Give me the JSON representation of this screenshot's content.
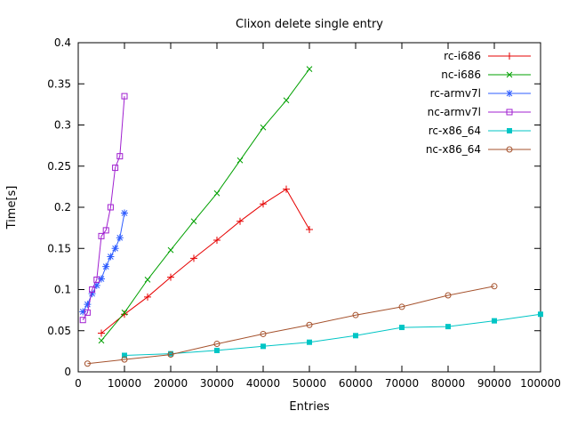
{
  "chart_data": {
    "type": "line",
    "title": "Clixon delete single entry",
    "xlabel": "Entries",
    "ylabel": "Time[s]",
    "xlim": [
      0,
      100000
    ],
    "ylim": [
      0,
      0.4
    ],
    "grid": false,
    "legend_position": "top-right-inside",
    "xticks": {
      "values": [
        0,
        10000,
        20000,
        30000,
        40000,
        50000,
        60000,
        70000,
        80000,
        90000,
        100000
      ],
      "labels": [
        "0",
        "10000",
        "20000",
        "30000",
        "40000",
        "50000",
        "60000",
        "70000",
        "80000",
        "90000",
        "100000"
      ]
    },
    "yticks": {
      "values": [
        0,
        0.05,
        0.1,
        0.15,
        0.2,
        0.25,
        0.3,
        0.35,
        0.4
      ],
      "labels": [
        "0",
        "0.05",
        "0.1",
        "0.15",
        "0.2",
        "0.25",
        "0.3",
        "0.35",
        "0.4"
      ]
    },
    "series": [
      {
        "name": "rc-i686",
        "color": "#e60000",
        "marker": "plus",
        "points": [
          [
            5000,
            0.047
          ],
          [
            10000,
            0.07
          ],
          [
            15000,
            0.091
          ],
          [
            20000,
            0.115
          ],
          [
            25000,
            0.138
          ],
          [
            30000,
            0.16
          ],
          [
            35000,
            0.183
          ],
          [
            40000,
            0.204
          ],
          [
            45000,
            0.222
          ],
          [
            50000,
            0.173
          ]
        ]
      },
      {
        "name": "nc-i686",
        "color": "#00a000",
        "marker": "cross",
        "points": [
          [
            5000,
            0.038
          ],
          [
            10000,
            0.072
          ],
          [
            15000,
            0.112
          ],
          [
            20000,
            0.148
          ],
          [
            25000,
            0.183
          ],
          [
            30000,
            0.217
          ],
          [
            35000,
            0.257
          ],
          [
            40000,
            0.297
          ],
          [
            45000,
            0.33
          ],
          [
            50000,
            0.368
          ]
        ]
      },
      {
        "name": "rc-armv7l",
        "color": "#2e5cff",
        "marker": "asterisk",
        "points": [
          [
            1000,
            0.073
          ],
          [
            2000,
            0.082
          ],
          [
            3000,
            0.095
          ],
          [
            4000,
            0.105
          ],
          [
            5000,
            0.113
          ],
          [
            6000,
            0.128
          ],
          [
            7000,
            0.14
          ],
          [
            8000,
            0.15
          ],
          [
            9000,
            0.163
          ],
          [
            10000,
            0.193
          ]
        ]
      },
      {
        "name": "nc-armv7l",
        "color": "#a020d0",
        "marker": "square-open",
        "points": [
          [
            1000,
            0.063
          ],
          [
            2000,
            0.072
          ],
          [
            3000,
            0.1
          ],
          [
            4000,
            0.112
          ],
          [
            5000,
            0.165
          ],
          [
            6000,
            0.172
          ],
          [
            7000,
            0.2
          ],
          [
            8000,
            0.248
          ],
          [
            9000,
            0.262
          ],
          [
            10000,
            0.335
          ]
        ]
      },
      {
        "name": "rc-x86_64",
        "color": "#00c5c5",
        "marker": "square-filled",
        "points": [
          [
            10000,
            0.02
          ],
          [
            20000,
            0.022
          ],
          [
            30000,
            0.026
          ],
          [
            40000,
            0.031
          ],
          [
            50000,
            0.036
          ],
          [
            60000,
            0.044
          ],
          [
            70000,
            0.054
          ],
          [
            80000,
            0.055
          ],
          [
            90000,
            0.062
          ],
          [
            100000,
            0.07
          ]
        ]
      },
      {
        "name": "nc-x86_64",
        "color": "#a5522d",
        "marker": "circle-open",
        "points": [
          [
            2000,
            0.01
          ],
          [
            10000,
            0.015
          ],
          [
            20000,
            0.021
          ],
          [
            30000,
            0.034
          ],
          [
            40000,
            0.046
          ],
          [
            50000,
            0.057
          ],
          [
            60000,
            0.069
          ],
          [
            70000,
            0.079
          ],
          [
            80000,
            0.093
          ],
          [
            90000,
            0.104
          ]
        ]
      }
    ]
  }
}
